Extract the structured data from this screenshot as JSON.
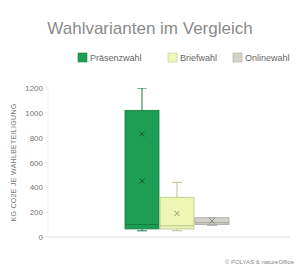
{
  "chart_data": {
    "type": "box",
    "title": "Wahlvarianten im Vergleich",
    "y_label": "KG CO2E JE WAHLBETEILIGUNG",
    "credit": "© POLYAS & natureOffice",
    "series": [
      {
        "name": "Präsenzwahl",
        "color": "#1e9e55",
        "min": 50,
        "q1": 65,
        "median": 100,
        "q3": 1020,
        "max": 1200,
        "means": [
          830,
          450
        ]
      },
      {
        "name": "Briefwahl",
        "color": "#eef6b4",
        "min": 50,
        "q1": 65,
        "median": 90,
        "q3": 320,
        "max": 440,
        "means": [
          190
        ]
      },
      {
        "name": "Onlinewahl",
        "color": "#d3d3ca",
        "min": 95,
        "q1": 100,
        "median": 115,
        "q3": 155,
        "max": 155,
        "means": [
          130
        ]
      }
    ],
    "ylim": [
      0,
      1200
    ],
    "yticks": [
      0,
      200,
      400,
      600,
      800,
      1000,
      1200
    ],
    "grid": false,
    "legend": "top",
    "tick_labels": "y"
  }
}
